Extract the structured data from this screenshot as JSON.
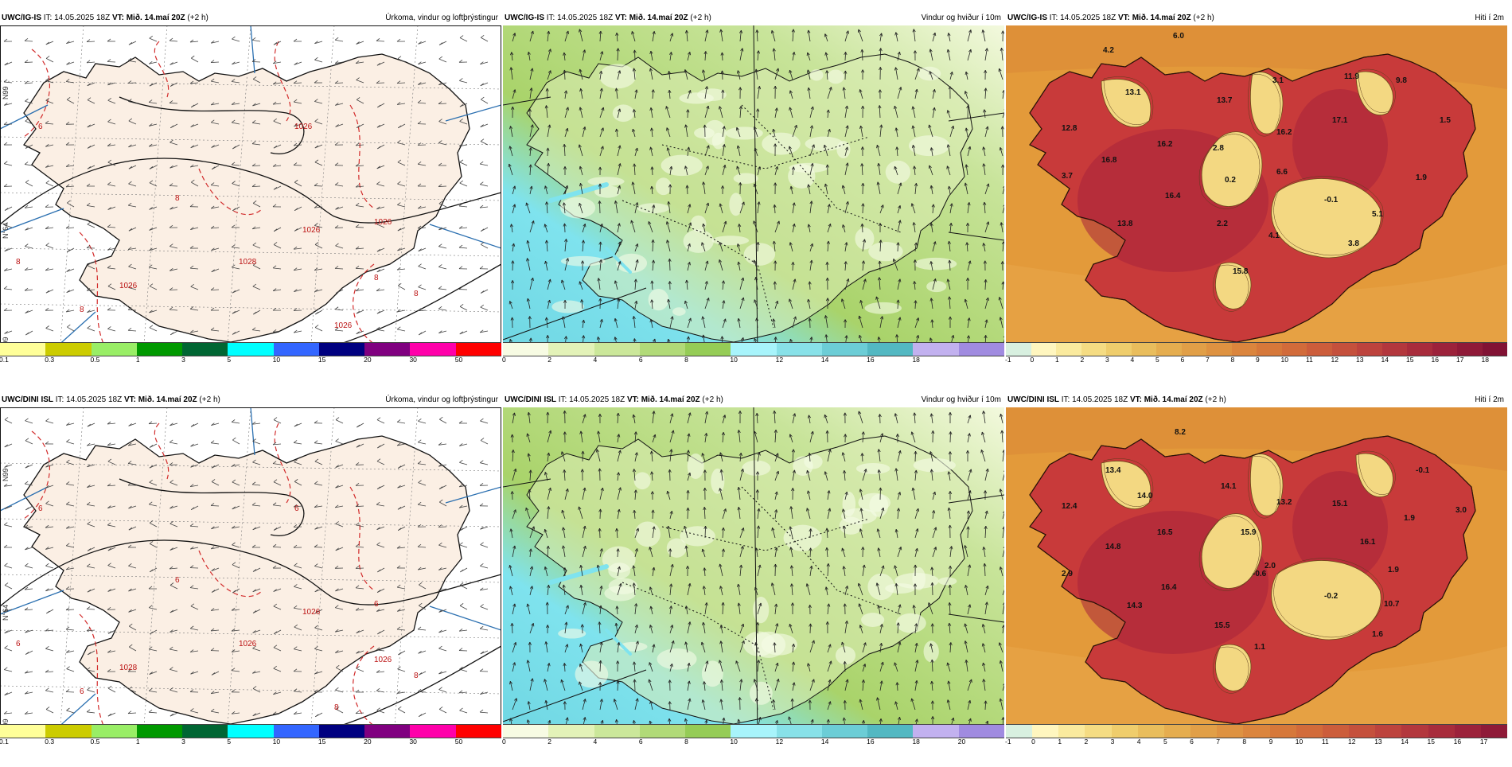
{
  "colors": {
    "land_precip": "#fbefe4",
    "sea_precip": "#ffffff",
    "pressure_red": "#d22b2b",
    "wind_light": "#f3f9de",
    "wind_green": "#a9d36a",
    "wind_cyan": "#7fe3ee",
    "temp_sea": "#e39a3a",
    "temp_hot": "#c83a3a",
    "temp_cold": "#f3d882"
  },
  "icons": {
    "wind_arrow": "arrow-icon",
    "wind_barb": "wind-barb-icon"
  },
  "rows": [
    {
      "panels": [
        {
          "kind": "precip",
          "model": "UWC/IG-IS",
          "it": " IT: 14.05.2025 18Z ",
          "vt": "VT: Mið. 14.maí 20Z",
          "lead": " (+2 h)",
          "title": "Úrkoma, vindur og loftþrýstingur",
          "side_labels": [
            "N99",
            "N°64",
            "N99"
          ],
          "pressure_labels": [
            "6",
            "8",
            "8",
            "1026",
            "1026",
            "1026",
            "8",
            "1026",
            "1026",
            "1028",
            "8",
            "8"
          ],
          "ticks": [
            "0.1",
            "0.3",
            "0.5",
            "1",
            "3",
            "5",
            "10",
            "15",
            "20",
            "30",
            "50"
          ],
          "colorbar": [
            "#ffff99",
            "#cccc00",
            "#99ee66",
            "#009900",
            "#006633",
            "#00ffff",
            "#3366ff",
            "#000080",
            "#800080",
            "#ff00aa",
            "#ff0000"
          ]
        },
        {
          "kind": "wind",
          "model": "UWC/IG-IS",
          "it": " IT: 14.05.2025 18Z ",
          "vt": "VT: Mið. 14.maí 20Z",
          "lead": " (+2 h)",
          "title": "Vindur og hviður í 10m",
          "ticks": [
            "0",
            "2",
            "4",
            "6",
            "8",
            "10",
            "12",
            "14",
            "16",
            "18"
          ],
          "colorbar": [
            "#f7fbe3",
            "#e3f2b8",
            "#cbe79a",
            "#b1da78",
            "#95cc56",
            "#a8f4fb",
            "#88e1e8",
            "#6ccdd6",
            "#53b8c2",
            "#c2b1ef",
            "#a08be0"
          ]
        },
        {
          "kind": "temp",
          "model": "UWC/IG-IS",
          "it": " IT: 14.05.2025 18Z ",
          "vt": "VT: Mið. 14.maí 20Z",
          "lead": " (+2 h)",
          "title": "Hiti í 2m",
          "values": [
            "6.0",
            "4.2",
            "13.1",
            "12.8",
            "3.7",
            "16.8",
            "16.2",
            "2.8",
            "13.7",
            "3.1",
            "11.9",
            "9.8",
            "17.1",
            "16.2",
            "1.5",
            "0.2",
            "6.6",
            "16.4",
            "-0.1",
            "1.9",
            "13.8",
            "2.2",
            "4.1",
            "5.1",
            "3.8",
            "15.8"
          ],
          "ticks": [
            "-1",
            "0",
            "1",
            "2",
            "3",
            "4",
            "5",
            "6",
            "7",
            "8",
            "9",
            "10",
            "11",
            "12",
            "13",
            "14",
            "15",
            "16",
            "17",
            "18"
          ],
          "colorbar": [
            "#d8f0e0",
            "#fff6bf",
            "#faea9e",
            "#f5dc83",
            "#efcd6c",
            "#e9bd5c",
            "#e5ad4f",
            "#e19f47",
            "#de9241",
            "#db853d",
            "#d6783a",
            "#d26b3a",
            "#cc5d3b",
            "#c5503c",
            "#bd433d",
            "#b3373d",
            "#a82c3c",
            "#9c223b",
            "#8f1a38",
            "#811234"
          ]
        }
      ]
    },
    {
      "panels": [
        {
          "kind": "precip",
          "model": "UWC/DINI ISL",
          "it": " IT: 14.05.2025 18Z ",
          "vt": "VT: Mið. 14.maí 20Z",
          "lead": " (+2 h)",
          "title": "Úrkoma, vindur og loftþrýstingur",
          "side_labels": [
            "N99",
            "N°64",
            "N99"
          ],
          "pressure_labels": [
            "6",
            "6",
            "6",
            "6",
            "1026",
            "6",
            "1026",
            "1028",
            "8",
            "1026",
            "6",
            "8"
          ],
          "ticks": [
            "0.1",
            "0.3",
            "0.5",
            "1",
            "3",
            "5",
            "10",
            "15",
            "20",
            "30",
            "50"
          ],
          "colorbar": [
            "#ffff99",
            "#cccc00",
            "#99ee66",
            "#009900",
            "#006633",
            "#00ffff",
            "#3366ff",
            "#000080",
            "#800080",
            "#ff00aa",
            "#ff0000"
          ]
        },
        {
          "kind": "wind",
          "model": "UWC/DINI ISL",
          "it": " IT: 14.05.2025 18Z ",
          "vt": "VT: Mið. 14.maí 20Z",
          "lead": " (+2 h)",
          "title": "Vindur og hviður í 10m",
          "ticks": [
            "0",
            "2",
            "4",
            "6",
            "8",
            "10",
            "12",
            "14",
            "16",
            "18",
            "20"
          ],
          "colorbar": [
            "#f7fbe3",
            "#e3f2b8",
            "#cbe79a",
            "#b1da78",
            "#95cc56",
            "#a8f4fb",
            "#88e1e8",
            "#6ccdd6",
            "#53b8c2",
            "#c2b1ef",
            "#a08be0"
          ]
        },
        {
          "kind": "temp",
          "model": "UWC/DINI ISL",
          "it": " IT: 14.05.2025 18Z ",
          "vt": "VT: Mið. 14.maí 20Z",
          "lead": " (+2 h)",
          "title": "Hiti í 2m",
          "values": [
            "8.2",
            "13.4",
            "12.4",
            "14.0",
            "14.1",
            "13.2",
            "-0.1",
            "15.1",
            "3.0",
            "1.9",
            "16.5",
            "15.9",
            "16.1",
            "2.9",
            "14.8",
            "2.0",
            "-0.6",
            "1.9",
            "16.4",
            "-0.2",
            "14.3",
            "10.7",
            "15.5",
            "1.6",
            "1.1"
          ],
          "ticks": [
            "-1",
            "0",
            "1",
            "2",
            "3",
            "4",
            "5",
            "6",
            "7",
            "8",
            "9",
            "10",
            "11",
            "12",
            "13",
            "14",
            "15",
            "16",
            "17"
          ],
          "colorbar": [
            "#d8f0e0",
            "#fff6bf",
            "#faea9e",
            "#f5dc83",
            "#efcd6c",
            "#e9bd5c",
            "#e5ad4f",
            "#e19f47",
            "#de9241",
            "#db853d",
            "#d6783a",
            "#d26b3a",
            "#cc5d3b",
            "#c5503c",
            "#bd433d",
            "#b3373d",
            "#a82c3c",
            "#9c223b",
            "#8f1a38"
          ]
        }
      ]
    }
  ]
}
